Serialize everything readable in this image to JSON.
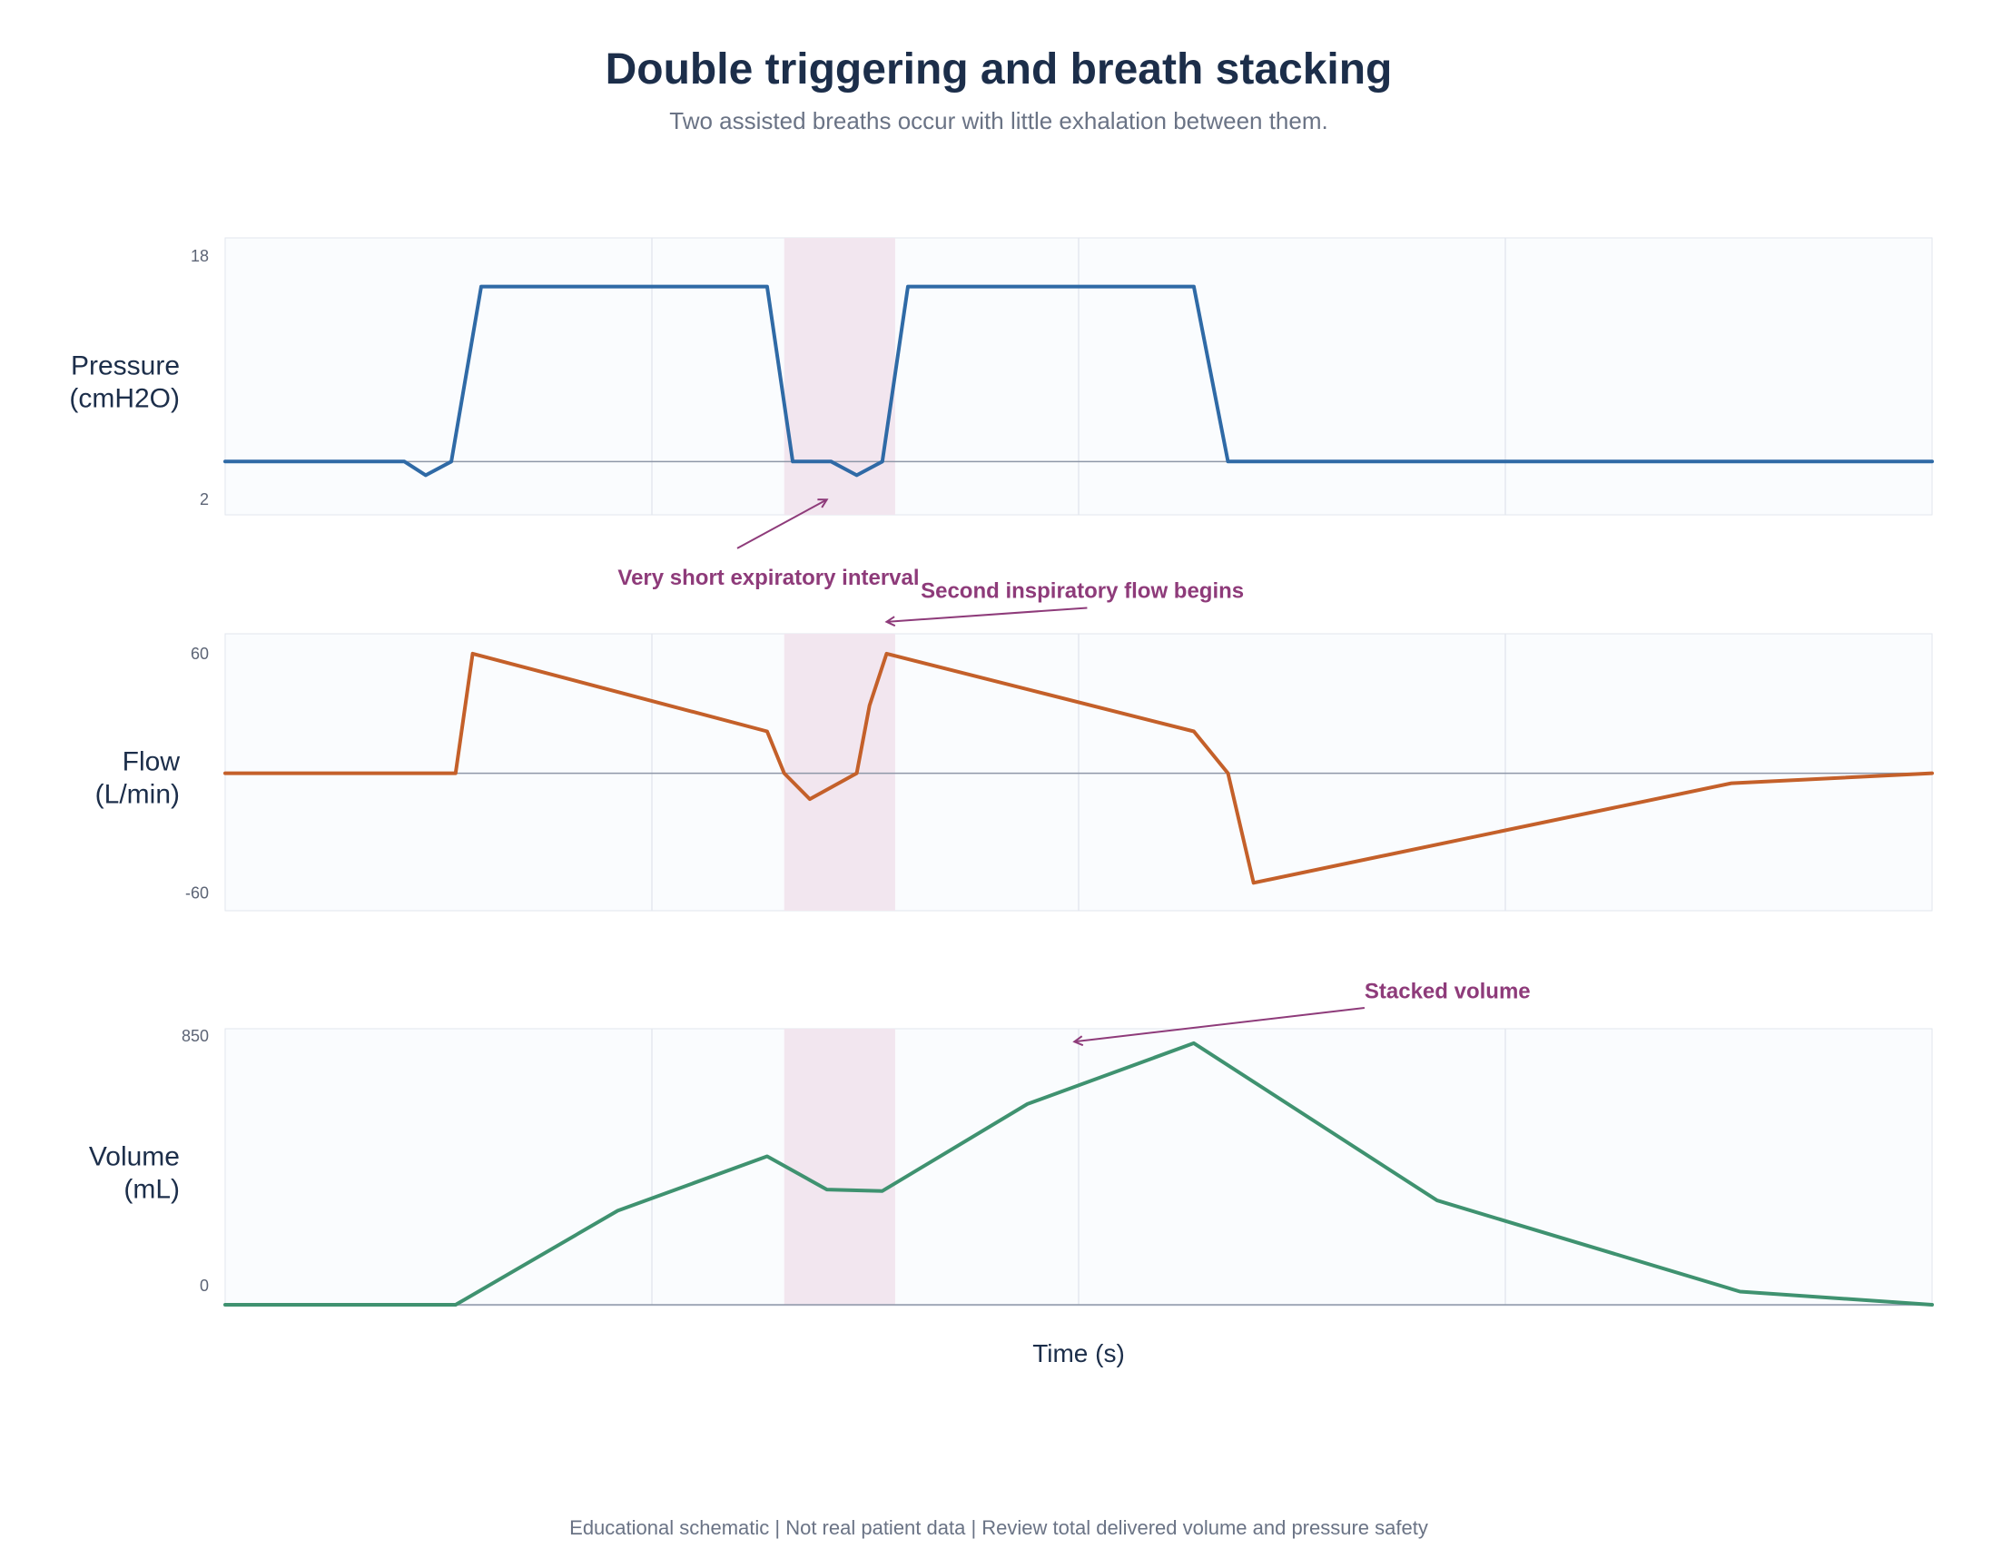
{
  "title": "Double triggering and breath stacking",
  "subtitle": "Two assisted breaths occur with little exhalation between them.",
  "footer": "Educational schematic | Not real patient data | Review total delivered volume and pressure safety",
  "colors": {
    "pressure": "#2f6aa6",
    "flow": "#c4602a",
    "volume": "#3f9270",
    "highlight": "#f2e6ef",
    "annotation": "#8e3b7a",
    "panel_bg": "#fafcfe",
    "baseline": "#8e97a8"
  },
  "chart_data": {
    "type": "line",
    "xlabel": "Time (s)",
    "xlim": [
      0,
      4.0
    ],
    "highlight": {
      "x0": 1.31,
      "x1": 1.57
    },
    "panels": [
      {
        "key": "pressure",
        "ylabel_lines": [
          "Pressure",
          "(cmH2O)"
        ],
        "ylim": [
          1.0,
          19.2
        ],
        "yticks": [
          2,
          18
        ],
        "ytick_labels": [
          "2",
          "18"
        ],
        "baseline": 4.5,
        "series": {
          "x": [
            0.0,
            0.42,
            0.47,
            0.53,
            0.6,
            1.27,
            1.33,
            1.42,
            1.48,
            1.54,
            1.6,
            2.27,
            2.35,
            4.0
          ],
          "y": [
            4.5,
            4.5,
            3.6,
            4.5,
            16.0,
            16.0,
            4.5,
            4.5,
            3.6,
            4.5,
            16.0,
            16.0,
            4.5,
            4.5
          ]
        }
      },
      {
        "key": "flow",
        "ylabel_lines": [
          "Flow",
          "(L/min)"
        ],
        "ylim": [
          -69,
          70
        ],
        "yticks": [
          -60,
          60
        ],
        "ytick_labels": [
          "-60",
          "60"
        ],
        "baseline": 0,
        "series": {
          "x": [
            0.0,
            0.54,
            0.58,
            1.27,
            1.31,
            1.37,
            1.48,
            1.51,
            1.55,
            2.27,
            2.35,
            2.41,
            3.53,
            4.0
          ],
          "y": [
            0,
            0,
            60,
            21,
            0,
            -13,
            0,
            34,
            60,
            21,
            0,
            -55,
            -5,
            0
          ]
        }
      },
      {
        "key": "volume",
        "ylabel_lines": [
          "Volume",
          "(mL)"
        ],
        "ylim": [
          -68,
          874
        ],
        "yticks": [
          0,
          850
        ],
        "ytick_labels": [
          "0",
          "850"
        ],
        "baseline": -65,
        "series": {
          "x": [
            0.0,
            0.54,
            0.92,
            1.27,
            1.41,
            1.54,
            1.88,
            2.27,
            2.84,
            3.55,
            4.0
          ],
          "y": [
            -65,
            -65,
            255,
            440,
            327,
            322,
            618,
            825,
            290,
            -20,
            -65
          ]
        }
      }
    ],
    "annotations": [
      {
        "text": "Very short expiratory interval",
        "panel": 0,
        "tx": 0.92,
        "ty": -3.6,
        "text_anchor": "start",
        "ax": 1.2,
        "ay": -1.2,
        "hx": 1.41,
        "hy": 2.0
      },
      {
        "text": "Second inspiratory flow begins",
        "panel": 1,
        "tx": 1.63,
        "ty": 88,
        "text_anchor": "start",
        "ax": 2.02,
        "ay": 83,
        "hx": 1.55,
        "hy": 76
      },
      {
        "text": "Stacked volume",
        "panel": 2,
        "tx": 2.67,
        "ty": 978,
        "text_anchor": "start",
        "ax": 2.67,
        "ay": 945,
        "hx": 1.99,
        "hy": 830
      }
    ]
  }
}
